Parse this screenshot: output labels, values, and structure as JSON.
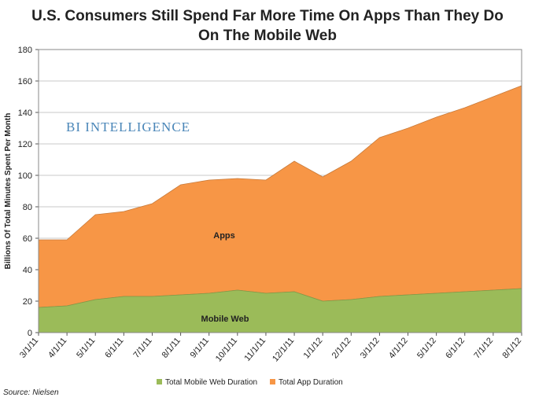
{
  "chart_data": {
    "type": "area",
    "stacked": true,
    "title_lines": [
      "U.S. Consumers Still Spend Far More Time On Apps Than They Do",
      "On The Mobile Web"
    ],
    "xlabel": "",
    "ylabel": "Billions Of Total Minutes Spent Per Month",
    "ylim": [
      0,
      180
    ],
    "yticks": [
      0,
      20,
      40,
      60,
      80,
      100,
      120,
      140,
      160,
      180
    ],
    "categories": [
      "3/1/11",
      "4/1/11",
      "5/1/11",
      "6/1/11",
      "7/1/11",
      "8/1/11",
      "9/1/11",
      "10/1/11",
      "11/1/11",
      "12/1/11",
      "1/1/12",
      "2/1/12",
      "3/1/12",
      "4/1/12",
      "5/1/12",
      "6/1/12",
      "7/1/12",
      "8/1/12"
    ],
    "series": [
      {
        "name": "Total Mobile Web Duration",
        "color": "#9bbb59",
        "values": [
          16,
          17,
          21,
          23,
          23,
          24,
          25,
          27,
          25,
          26,
          20,
          21,
          23,
          24,
          25,
          26,
          27,
          28
        ]
      },
      {
        "name": "Total App Duration",
        "color": "#f79646",
        "values": [
          43,
          42,
          54,
          54,
          59,
          70,
          72,
          71,
          72,
          83,
          79,
          88,
          101,
          106,
          112,
          117,
          123,
          129
        ]
      }
    ],
    "annotations": {
      "apps_label": "Apps",
      "mobile_web_label": "Mobile Web",
      "watermark": "BI INTELLIGENCE"
    },
    "grid": true,
    "legend_position": "bottom",
    "source": "Source: Nielsen"
  }
}
